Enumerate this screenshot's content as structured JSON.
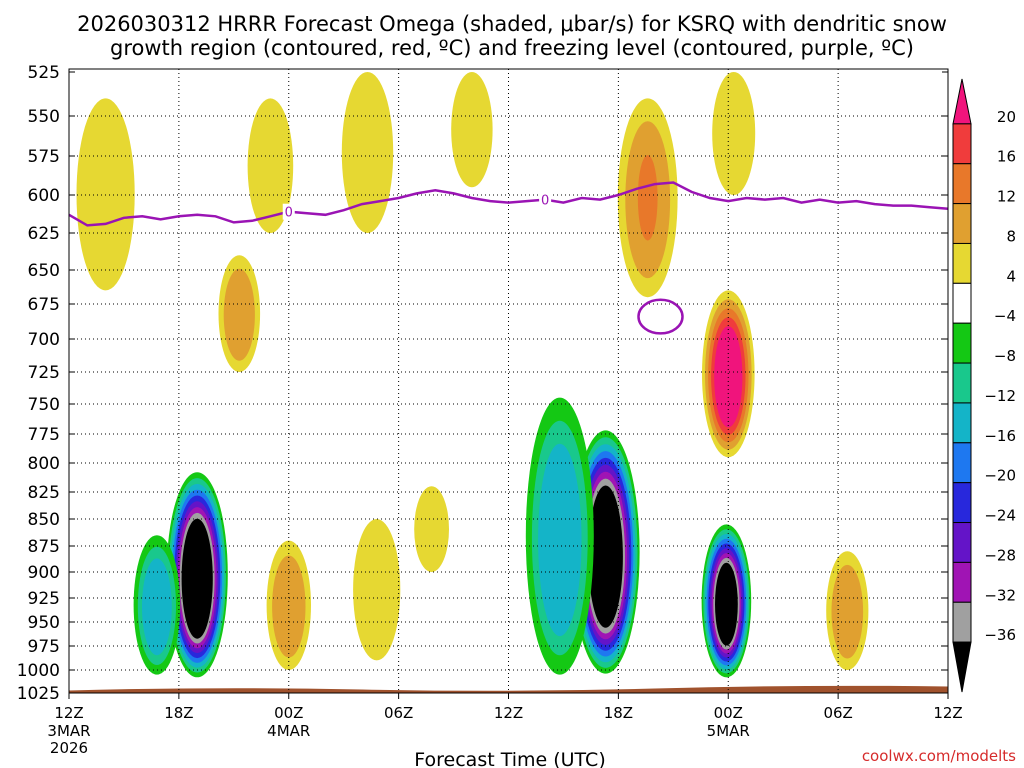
{
  "chart_data": {
    "type": "heatmap",
    "title_line1": "2026030312 HRRR Forecast Omega (shaded, μbar/s) for KSRQ with dendritic snow",
    "title_line2": "growth region (contoured, red, ºC) and freezing level (contoured, purple, ºC)",
    "xlabel": "Forecast Time (UTC)",
    "credit": "coolwx.com/modelts",
    "x_hours": [
      0,
      6,
      12,
      18,
      24,
      30,
      36,
      42,
      48
    ],
    "x_tick_labels": [
      "12Z",
      "18Z",
      "00Z",
      "06Z",
      "12Z",
      "18Z",
      "00Z",
      "06Z",
      "12Z"
    ],
    "x_date_labels": [
      {
        "hour": 0,
        "lines": [
          "3MAR",
          "2026"
        ]
      },
      {
        "hour": 12,
        "lines": [
          "4MAR"
        ]
      },
      {
        "hour": 36,
        "lines": [
          "5MAR"
        ]
      }
    ],
    "y_levels": [
      525,
      550,
      575,
      600,
      625,
      650,
      675,
      700,
      725,
      750,
      775,
      800,
      825,
      850,
      875,
      900,
      925,
      950,
      975,
      1000,
      1025
    ],
    "y_tick_labels": [
      "525",
      "550",
      "575",
      "600",
      "625",
      "650",
      "675",
      "700",
      "725",
      "750",
      "775",
      "800",
      "825",
      "850",
      "875",
      "900",
      "925",
      "950",
      "975",
      "1000",
      "1025"
    ],
    "colorbar": {
      "labels": [
        "20",
        "16",
        "12",
        "8",
        "4",
        "−4",
        "−8",
        "−12",
        "−16",
        "−20",
        "−24",
        "−28",
        "−32",
        "−36"
      ],
      "bins": [
        {
          "lo": 20,
          "hi": 999,
          "color": "#f0147c"
        },
        {
          "lo": 16,
          "hi": 20,
          "color": "#f03c3c"
        },
        {
          "lo": 12,
          "hi": 16,
          "color": "#e8782a"
        },
        {
          "lo": 8,
          "hi": 12,
          "color": "#e0a030"
        },
        {
          "lo": 4,
          "hi": 8,
          "color": "#e6d832"
        },
        {
          "lo": -4,
          "hi": 4,
          "color": "#ffffff"
        },
        {
          "lo": -8,
          "hi": -4,
          "color": "#14c814"
        },
        {
          "lo": -12,
          "hi": -8,
          "color": "#19c88c"
        },
        {
          "lo": -16,
          "hi": -12,
          "color": "#14b4c8"
        },
        {
          "lo": -20,
          "hi": -16,
          "color": "#1e78f0"
        },
        {
          "lo": -24,
          "hi": -20,
          "color": "#2828dc"
        },
        {
          "lo": -28,
          "hi": -24,
          "color": "#6414c8"
        },
        {
          "lo": -32,
          "hi": -28,
          "color": "#a014b4"
        },
        {
          "lo": -36,
          "hi": -32,
          "color": "#a0a0a0"
        },
        {
          "lo": -999,
          "hi": -36,
          "color": "#000000"
        }
      ]
    },
    "omega_features": [
      {
        "name": "ascent-core-1",
        "hour": 7.0,
        "lo": 808,
        "hi": 1008,
        "peak": -42
      },
      {
        "name": "ascent-core-2",
        "hour": 29.3,
        "lo": 772,
        "hi": 1004,
        "peak": -42
      },
      {
        "name": "ascent-core-3",
        "hour": 35.9,
        "lo": 855,
        "hi": 1008,
        "peak": -40
      },
      {
        "name": "ascent-left-band",
        "hour": 4.8,
        "lo": 865,
        "hi": 1005,
        "peak": -13
      },
      {
        "name": "ascent-right-flank",
        "hour": 26.8,
        "lo": 745,
        "hi": 1005,
        "peak": -14
      },
      {
        "name": "descent-core",
        "hour": 36.0,
        "lo": 665,
        "hi": 795,
        "peak": 24
      },
      {
        "name": "descent-upper-left",
        "hour": 31.6,
        "lo": 540,
        "hi": 670,
        "peak": 12
      },
      {
        "name": "descent-upper-right",
        "hour": 36.3,
        "lo": 525,
        "hi": 600,
        "peak": 6
      },
      {
        "name": "descent-mid-left",
        "hour": 9.3,
        "lo": 640,
        "hi": 725,
        "peak": 9
      },
      {
        "name": "descent-low-left",
        "hour": 12.0,
        "lo": 870,
        "hi": 1000,
        "peak": 9
      },
      {
        "name": "descent-low-right",
        "hour": 42.5,
        "lo": 880,
        "hi": 1000,
        "peak": 9
      },
      {
        "name": "descent-low-mid",
        "hour": 19.8,
        "lo": 820,
        "hi": 900,
        "peak": 5
      },
      {
        "name": "descent-low-far",
        "hour": 16.8,
        "lo": 850,
        "hi": 990,
        "peak": 5
      },
      {
        "name": "descent-upper-mid",
        "hour": 16.3,
        "lo": 525,
        "hi": 625,
        "peak": 6
      },
      {
        "name": "descent-upper-center",
        "hour": 22.0,
        "lo": 525,
        "hi": 595,
        "peak": 5
      },
      {
        "name": "descent-upper-far-left",
        "hour": 2.0,
        "lo": 540,
        "hi": 665,
        "peak": 5
      },
      {
        "name": "descent-upper-nine",
        "hour": 11.0,
        "lo": 540,
        "hi": 625,
        "peak": 5
      }
    ],
    "freezing_level": {
      "label": "0",
      "hours": [
        0,
        1,
        2,
        3,
        4,
        5,
        6,
        7,
        8,
        9,
        10,
        11,
        12,
        13,
        14,
        15,
        16,
        17,
        18,
        19,
        20,
        21,
        22,
        23,
        24,
        25,
        26,
        27,
        28,
        29,
        30,
        31,
        32,
        33,
        34,
        35,
        36,
        37,
        38,
        39,
        40,
        41,
        42,
        43,
        44,
        45,
        46,
        47,
        48
      ],
      "pressure": [
        613,
        620,
        619,
        615,
        614,
        616,
        614,
        613,
        614,
        618,
        617,
        614,
        611,
        612,
        613,
        610,
        606,
        604,
        602,
        599,
        597,
        599,
        602,
        604,
        605,
        604,
        603,
        605,
        602,
        603,
        600,
        596,
        593,
        592,
        598,
        602,
        604,
        602,
        603,
        602,
        605,
        603,
        605,
        604,
        606,
        607,
        607,
        608,
        609
      ],
      "label_hours": [
        12.0,
        26.0
      ],
      "closed_contour": {
        "hour": 32.3,
        "pressure": 684,
        "half_width_hours": 1.2,
        "half_height_hpa": 12
      }
    },
    "surface": {
      "color": "#a0522d",
      "pressure": 1019
    }
  }
}
